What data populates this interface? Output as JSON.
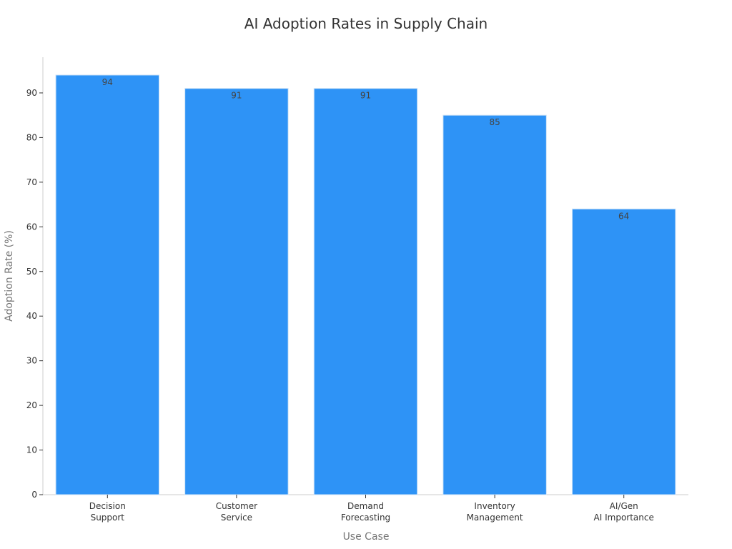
{
  "chart_data": {
    "type": "bar",
    "title": "AI Adoption Rates in Supply Chain",
    "xlabel": "Use Case",
    "ylabel": "Adoption Rate (%)",
    "categories": [
      [
        "Decision",
        "Support"
      ],
      [
        "Customer",
        "Service"
      ],
      [
        "Demand",
        "Forecasting"
      ],
      [
        "Inventory",
        "Management"
      ],
      [
        "AI/Gen",
        "AI Importance"
      ]
    ],
    "values": [
      94,
      91,
      91,
      85,
      64
    ],
    "ylim": [
      0,
      98
    ],
    "yticks": [
      0,
      10,
      20,
      30,
      40,
      50,
      60,
      70,
      80,
      90
    ],
    "bar_color": "#2e93f6",
    "bar_edge_color": "#cfe3f7",
    "grid": false,
    "legend": "none"
  }
}
